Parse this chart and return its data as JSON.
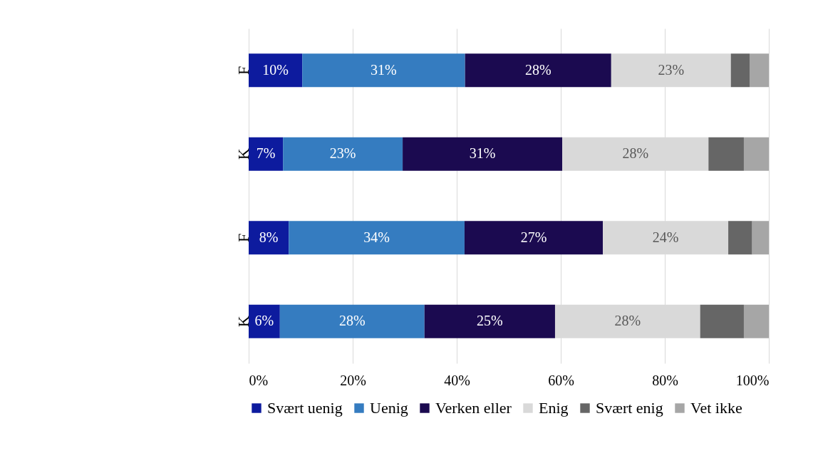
{
  "chart_data": {
    "type": "bar",
    "orientation": "horizontal",
    "stacked": true,
    "categories": [
      "F",
      "K",
      "F",
      "K"
    ],
    "series": [
      {
        "name": "Svært uenig",
        "color": "#0d1b9e",
        "values": [
          10.3,
          6.6,
          7.7,
          6.0
        ],
        "value_labels": [
          "10%",
          "7%",
          "8%",
          "6%"
        ]
      },
      {
        "name": "Uenig",
        "color": "#357cc0",
        "values": [
          31.3,
          23.0,
          33.8,
          27.8
        ],
        "value_labels": [
          "31%",
          "23%",
          "34%",
          "28%"
        ]
      },
      {
        "name": "Verken eller",
        "color": "#1b0a50",
        "values": [
          28.1,
          30.7,
          26.6,
          25.1
        ],
        "value_labels": [
          "28%",
          "31%",
          "27%",
          "25%"
        ]
      },
      {
        "name": "Enig",
        "color": "#d9d9d9",
        "values": [
          23.0,
          28.1,
          24.1,
          27.9
        ],
        "value_labels": [
          "23%",
          "28%",
          "24%",
          "28%"
        ]
      },
      {
        "name": "Svært enig",
        "color": "#666666",
        "values": [
          3.6,
          6.8,
          4.6,
          8.4
        ]
      },
      {
        "name": "Vet ikke",
        "color": "#a6a6a6",
        "values": [
          3.7,
          4.8,
          3.2,
          4.8
        ]
      }
    ],
    "xlim": [
      0,
      100
    ],
    "xticks": [
      {
        "value": 0,
        "label": "0%"
      },
      {
        "value": 20,
        "label": "20%"
      },
      {
        "value": 40,
        "label": "40%"
      },
      {
        "value": 60,
        "label": "60%"
      },
      {
        "value": 80,
        "label": "80%"
      },
      {
        "value": 100,
        "label": "100%"
      }
    ],
    "grid": "x",
    "legend": "bottom"
  }
}
